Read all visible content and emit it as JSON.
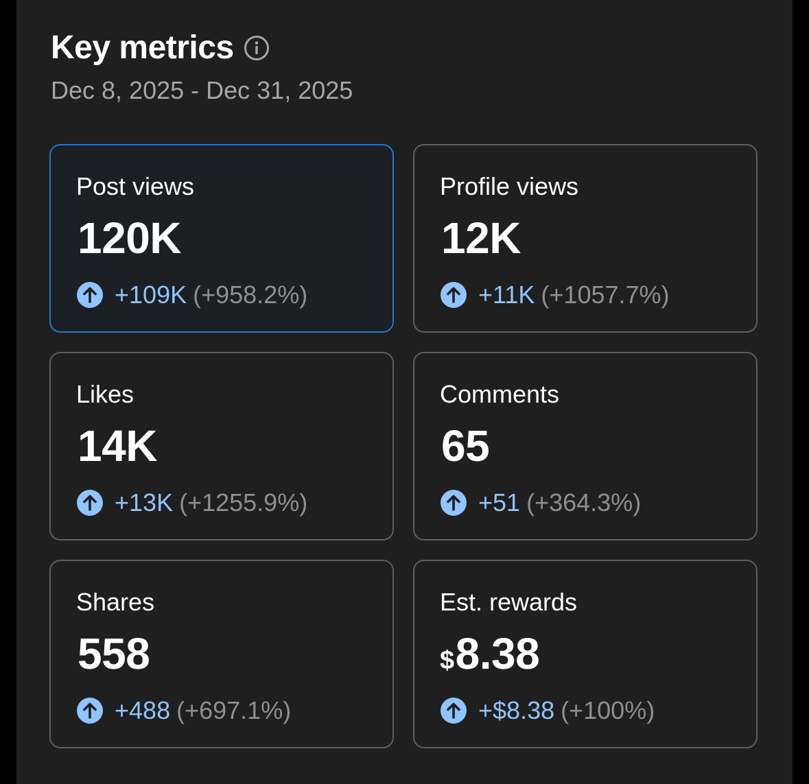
{
  "header": {
    "title": "Key metrics",
    "date_range": "Dec 8, 2025 - Dec 31, 2025"
  },
  "colors": {
    "accent_blue": "#8fc4ff",
    "selected_border": "#1f7bd1",
    "card_border": "#5e5e5e",
    "panel_bg": "#1f1f1f"
  },
  "metrics": [
    {
      "label": "Post views",
      "currency": "",
      "value": "120K",
      "delta": "+109K",
      "pct": "(+958.2%)",
      "selected": true,
      "icon": "arrow-up-circle-icon"
    },
    {
      "label": "Profile views",
      "currency": "",
      "value": "12K",
      "delta": "+11K",
      "pct": "(+1057.7%)",
      "selected": false,
      "icon": "arrow-up-circle-icon"
    },
    {
      "label": "Likes",
      "currency": "",
      "value": "14K",
      "delta": "+13K",
      "pct": "(+1255.9%)",
      "selected": false,
      "icon": "arrow-up-circle-icon"
    },
    {
      "label": "Comments",
      "currency": "",
      "value": "65",
      "delta": "+51",
      "pct": "(+364.3%)",
      "selected": false,
      "icon": "arrow-up-circle-icon"
    },
    {
      "label": "Shares",
      "currency": "",
      "value": "558",
      "delta": "+488",
      "pct": "(+697.1%)",
      "selected": false,
      "icon": "arrow-up-circle-icon"
    },
    {
      "label": "Est. rewards",
      "currency": "$",
      "value": "8.38",
      "delta": "+$8.38",
      "pct": "(+100%)",
      "selected": false,
      "icon": "arrow-up-circle-icon"
    }
  ]
}
